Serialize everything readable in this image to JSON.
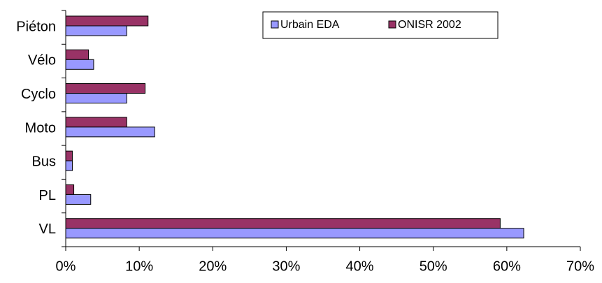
{
  "chart_data": {
    "type": "bar",
    "orientation": "horizontal",
    "categories": [
      "Piéton",
      "Vélo",
      "Cyclo",
      "Moto",
      "Bus",
      "PL",
      "VL"
    ],
    "series": [
      {
        "name": "Urbain EDA",
        "color": "#9999ff",
        "values": [
          8.3,
          3.8,
          8.3,
          12.1,
          0.9,
          3.4,
          62.3
        ]
      },
      {
        "name": "ONISR 2002",
        "color": "#993366",
        "values": [
          11.2,
          3.1,
          10.8,
          8.3,
          0.9,
          1.1,
          59.1
        ]
      }
    ],
    "xlim": [
      0,
      70
    ],
    "xticks": [
      {
        "value": 0,
        "label": "0%"
      },
      {
        "value": 10,
        "label": "10%"
      },
      {
        "value": 20,
        "label": "20%"
      },
      {
        "value": 30,
        "label": "30%"
      },
      {
        "value": 40,
        "label": "40%"
      },
      {
        "value": 50,
        "label": "50%"
      },
      {
        "value": 60,
        "label": "60%"
      },
      {
        "value": 70,
        "label": "70%"
      }
    ],
    "legend": "top-right"
  }
}
